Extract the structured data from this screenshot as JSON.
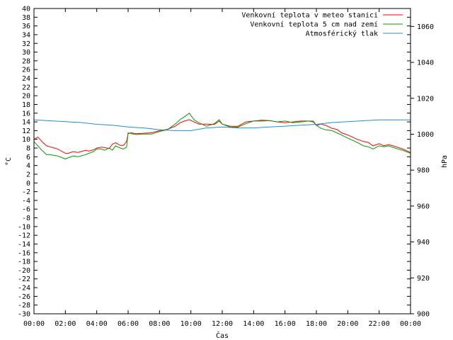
{
  "chart_data": {
    "type": "line",
    "xlabel": "Čas",
    "ylabel": "°C",
    "y2label": "hPa",
    "x_ticks": [
      "00:00",
      "02:00",
      "04:00",
      "06:00",
      "08:00",
      "10:00",
      "12:00",
      "14:00",
      "16:00",
      "18:00",
      "20:00",
      "22:00",
      "00:00"
    ],
    "xlim": [
      0,
      24
    ],
    "ylim": [
      -30,
      40
    ],
    "y_ticks": [
      40,
      38,
      36,
      34,
      32,
      30,
      28,
      26,
      24,
      22,
      20,
      18,
      16,
      14,
      12,
      10,
      8,
      6,
      4,
      2,
      0,
      -2,
      -4,
      -6,
      -8,
      -10,
      -12,
      -14,
      -16,
      -18,
      -20,
      -22,
      -24,
      -26,
      -28,
      -30
    ],
    "y2lim": [
      900,
      1070
    ],
    "y2_ticks": [
      1060,
      1040,
      1020,
      1000,
      980,
      960,
      940,
      920,
      900
    ],
    "grid": false,
    "legend_position": "top-right",
    "series": [
      {
        "name": "Venkovní teplota v meteo stanici",
        "color": "#ff0000",
        "axis": "left",
        "x": [
          0,
          0.25,
          0.5,
          0.8,
          1,
          1.3,
          1.5,
          1.8,
          2,
          2.2,
          2.5,
          2.8,
          3,
          3.3,
          3.5,
          3.8,
          4,
          4.3,
          4.5,
          4.8,
          5,
          5.2,
          5.5,
          5.7,
          5.9,
          6,
          6.2,
          6.5,
          7,
          7.5,
          8,
          8.5,
          9,
          9.3,
          9.6,
          9.9,
          10.2,
          10.5,
          11,
          11.5,
          11.8,
          12,
          12.5,
          13,
          13.5,
          14,
          14.5,
          15,
          15.5,
          16,
          16.5,
          17,
          17.5,
          17.8,
          18,
          18.3,
          18.6,
          19,
          19.3,
          19.6,
          20,
          20.3,
          20.6,
          21,
          21.3,
          21.6,
          22,
          22.3,
          22.6,
          23,
          23.5,
          24
        ],
        "y": [
          10,
          10.5,
          9.5,
          8.5,
          8.3,
          8,
          7.8,
          7.2,
          6.8,
          6.8,
          7.2,
          7,
          7.2,
          7.5,
          7.3,
          7.6,
          8,
          8.2,
          8.1,
          7.9,
          8.9,
          9.2,
          8.6,
          8.6,
          9.5,
          11.3,
          11.5,
          11.3,
          11.4,
          11.5,
          12,
          12.3,
          13,
          13.8,
          14.2,
          14.5,
          14,
          13.5,
          13.5,
          13.4,
          14.2,
          13.5,
          13,
          13,
          14,
          14.2,
          14.2,
          14.3,
          14,
          13.8,
          14,
          14.2,
          14.2,
          14,
          13.2,
          13.5,
          13.2,
          12.5,
          12.3,
          11.5,
          11,
          10.5,
          10,
          9.5,
          9.3,
          8.5,
          9,
          8.5,
          8.8,
          8.4,
          7.8,
          7
        ]
      },
      {
        "name": "Venkovní teplota 5 cm nad zemí",
        "color": "#00a000",
        "axis": "left",
        "x": [
          0,
          0.25,
          0.5,
          0.8,
          1,
          1.3,
          1.5,
          1.8,
          2,
          2.2,
          2.5,
          2.8,
          3,
          3.3,
          3.5,
          3.8,
          4,
          4.3,
          4.5,
          4.8,
          5,
          5.2,
          5.5,
          5.7,
          5.9,
          6,
          6.2,
          6.5,
          7,
          7.5,
          8,
          8.5,
          9,
          9.3,
          9.6,
          9.9,
          10.2,
          10.5,
          11,
          11.5,
          11.8,
          12,
          12.5,
          13,
          13.5,
          14,
          14.5,
          15,
          15.5,
          16,
          16.5,
          17,
          17.5,
          17.8,
          18,
          18.3,
          18.6,
          19,
          19.3,
          19.6,
          20,
          20.3,
          20.6,
          21,
          21.3,
          21.6,
          22,
          22.3,
          22.6,
          23,
          23.5,
          24
        ],
        "y": [
          9.5,
          8.5,
          7.5,
          6.5,
          6.5,
          6.3,
          6.2,
          5.8,
          5.5,
          5.8,
          6.2,
          6,
          6.2,
          6.5,
          6.8,
          7.2,
          7.8,
          7.8,
          7.5,
          8,
          7.5,
          8.5,
          8,
          7.8,
          8.2,
          11.5,
          11.3,
          11.1,
          11.2,
          11.2,
          11.8,
          12.2,
          13.5,
          14.5,
          15.2,
          16,
          14.5,
          13.8,
          13,
          13.6,
          14.5,
          13.5,
          12.8,
          12.8,
          13.6,
          14.2,
          14.4,
          14.3,
          14,
          14.2,
          13.8,
          14,
          14.2,
          14.2,
          13.2,
          12.5,
          12.2,
          12,
          11.5,
          11,
          10.3,
          9.8,
          9.3,
          8.5,
          8.3,
          7.8,
          8.5,
          8.3,
          8.5,
          8,
          7.5,
          6.8
        ]
      },
      {
        "name": "Atmosférický tlak",
        "color": "#1e90d8",
        "axis": "right",
        "x": [
          0,
          1,
          2,
          3,
          4,
          5,
          6,
          7,
          8,
          9,
          10,
          11,
          12,
          13,
          14,
          15,
          16,
          17,
          18,
          19,
          20,
          21,
          22,
          23,
          24
        ],
        "y": [
          1008,
          1007.5,
          1007,
          1006.5,
          1005.5,
          1005,
          1004,
          1003.5,
          1002.5,
          1002,
          1002,
          1003.5,
          1004,
          1003.5,
          1003.5,
          1004,
          1004.5,
          1005,
          1005.5,
          1006.5,
          1007,
          1007.5,
          1008,
          1008,
          1008
        ]
      }
    ]
  }
}
